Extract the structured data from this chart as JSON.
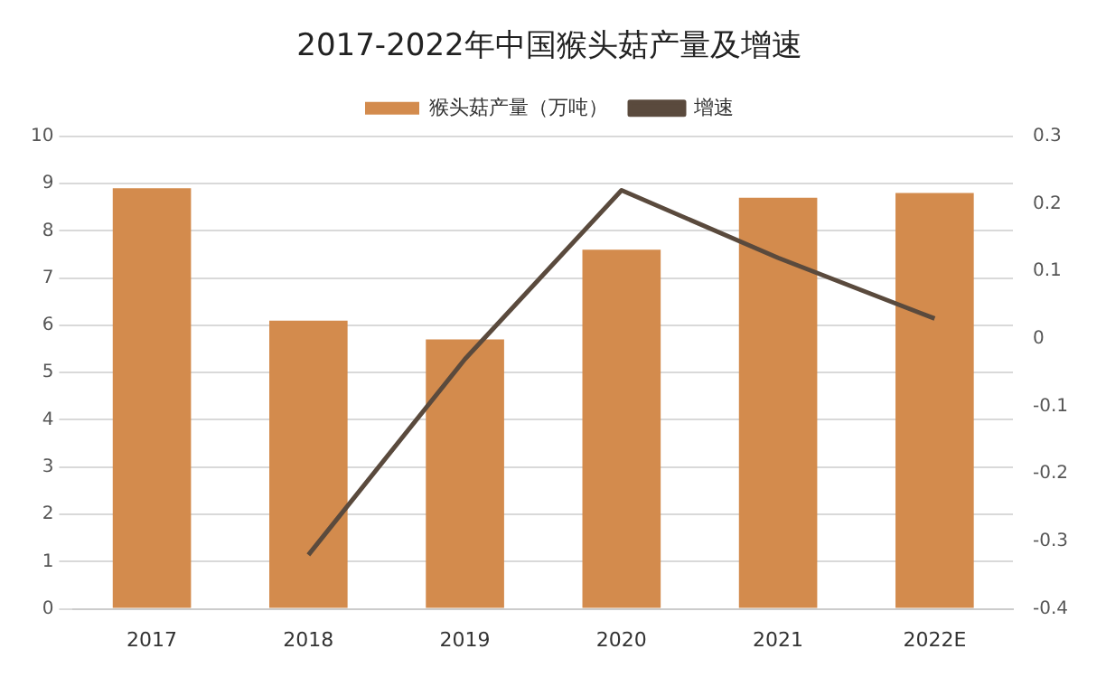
{
  "chart_data": {
    "type": "bar",
    "title": "2017-2022年中国猴头菇产量及增速",
    "categories": [
      "2017",
      "2018",
      "2019",
      "2020",
      "2021",
      "2022E"
    ],
    "series": [
      {
        "name": "猴头菇产量（万吨）",
        "color": "#d38b4d",
        "values": [
          8.9,
          6.1,
          5.7,
          7.6,
          8.7,
          8.8
        ]
      },
      {
        "name": "增速",
        "type": "line",
        "axis": "y2",
        "color": "#5a4a3d",
        "values": [
          null,
          -0.32,
          -0.03,
          0.22,
          0.12,
          0.03
        ]
      }
    ],
    "ylim": [
      0,
      10
    ],
    "yticks": [
      0,
      1,
      2,
      3,
      4,
      5,
      6,
      7,
      8,
      9,
      10
    ],
    "y2lim": [
      -0.4,
      0.3
    ],
    "y2ticks": [
      -0.4,
      -0.3,
      -0.2,
      -0.1,
      0,
      0.1,
      0.2,
      0.3
    ],
    "grid": "y",
    "legend": "top",
    "marker": "none"
  }
}
